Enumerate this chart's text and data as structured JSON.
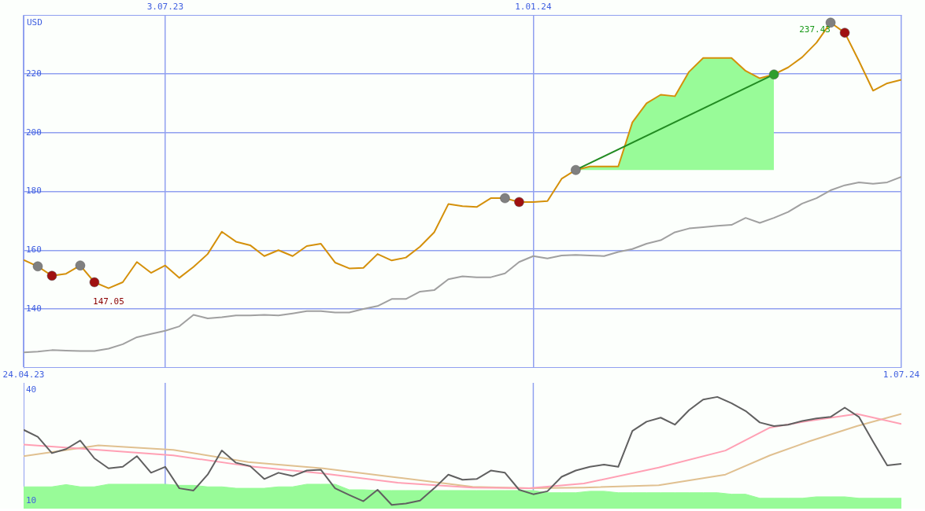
{
  "chart_data": [
    {
      "type": "line",
      "ylabel": "USD",
      "x": [
        "2023-04-24",
        "2023-05-01",
        "2023-05-08",
        "2023-05-15",
        "2023-05-22",
        "2023-05-29",
        "2023-06-05",
        "2023-06-12",
        "2023-06-19",
        "2023-06-26",
        "2023-07-03",
        "2023-07-10",
        "2023-07-17",
        "2023-07-24",
        "2023-07-31",
        "2023-08-07",
        "2023-08-14",
        "2023-08-21",
        "2023-08-28",
        "2023-09-04",
        "2023-09-11",
        "2023-09-18",
        "2023-09-25",
        "2023-10-02",
        "2023-10-09",
        "2023-10-16",
        "2023-10-23",
        "2023-10-30",
        "2023-11-06",
        "2023-11-13",
        "2023-11-20",
        "2023-11-27",
        "2023-12-04",
        "2023-12-11",
        "2023-12-18",
        "2023-12-25",
        "2024-01-01",
        "2024-01-08",
        "2024-01-15",
        "2024-01-22",
        "2024-01-29",
        "2024-02-05",
        "2024-02-12",
        "2024-02-19",
        "2024-02-26",
        "2024-03-04",
        "2024-03-11",
        "2024-03-18",
        "2024-03-25",
        "2024-04-01",
        "2024-04-08",
        "2024-04-15",
        "2024-04-22",
        "2024-04-29",
        "2024-05-06",
        "2024-05-13",
        "2024-05-20",
        "2024-05-27",
        "2024-06-03",
        "2024-06-10",
        "2024-06-17",
        "2024-06-24",
        "2024-07-01"
      ],
      "xlim": [
        "2023-04-24",
        "2024-07-01"
      ],
      "xticks": [
        {
          "value": "2023-04-24",
          "label": "24.04.23"
        },
        {
          "value": "2024-07-01",
          "label": "1.07.24"
        }
      ],
      "x2lim": [
        "2023-04-24",
        "2024-07-01"
      ],
      "x2ticks": [
        {
          "value": "2023-07-03",
          "label": "3.07.23"
        },
        {
          "value": "2024-01-01",
          "label": "1.01.24"
        }
      ],
      "ylim": [
        120,
        240
      ],
      "yticks": [
        140,
        160,
        180,
        200,
        220
      ],
      "grid": true,
      "legend": false,
      "annotations": [
        {
          "text": "237.43",
          "x": "2024-05-27",
          "y": 237.43
        },
        {
          "text": "147.05",
          "x": "2023-06-05",
          "y": 147.05
        }
      ],
      "series": [
        {
          "color": "#a0a0a0",
          "values": [
            125.2,
            125.5,
            126,
            125.8,
            125.7,
            125.7,
            126.5,
            128,
            130.4,
            131.5,
            132.6,
            134.1,
            138,
            136.8,
            137.2,
            137.8,
            137.8,
            138,
            137.8,
            138.5,
            139.3,
            139.3,
            138.8,
            138.8,
            140,
            141,
            143.4,
            143.4,
            145.9,
            146.4,
            150.1,
            151.1,
            150.8,
            150.8,
            152.1,
            156,
            158,
            157.2,
            158.2,
            158.4,
            158.2,
            158,
            159.4,
            160.4,
            162.2,
            163.4,
            166.1,
            167.4,
            167.8,
            168.3,
            168.6,
            171,
            169.3,
            171,
            173,
            175.9,
            177.7,
            180.4,
            182.1,
            183.1,
            182.6,
            183.1,
            185
          ]
        },
        {
          "color": "#d4900a",
          "values": [
            156.7,
            154.5,
            151.3,
            152,
            154.8,
            149.1,
            147.05,
            149.1,
            156,
            152.3,
            154.8,
            150.6,
            154.3,
            158.7,
            166.3,
            162.9,
            161.7,
            158,
            160,
            158,
            161.4,
            162.2,
            155.8,
            153.8,
            154,
            158.7,
            156.5,
            157.5,
            161.2,
            166.1,
            175.7,
            175,
            174.7,
            177.7,
            177.7,
            176.4,
            176.4,
            176.7,
            184.3,
            187.3,
            188.5,
            188.5,
            188.5,
            203.5,
            210,
            212.9,
            212.4,
            220.7,
            225.4,
            225.4,
            225.4,
            221,
            218.5,
            219.8,
            222.2,
            225.7,
            230.6,
            237.43,
            234,
            224.4,
            214.3,
            216.8,
            218
          ],
          "lower": [
            null,
            null,
            null,
            null,
            null,
            null,
            null,
            null,
            null,
            null,
            null,
            null,
            null,
            null,
            null,
            null,
            null,
            null,
            null,
            null,
            null,
            null,
            null,
            null,
            null,
            null,
            null,
            null,
            null,
            null,
            null,
            null,
            null,
            null,
            null,
            null,
            null,
            null,
            null,
            187.3,
            187.3,
            187.3,
            187.3,
            187.3,
            187.3,
            187.3,
            187.3,
            187.3,
            187.3,
            187.3,
            187.3,
            187.3,
            187.3,
            187.3,
            null,
            null,
            null,
            null,
            null,
            null,
            null,
            null,
            null
          ],
          "upper": [
            null,
            null,
            null,
            null,
            null,
            null,
            null,
            null,
            null,
            null,
            null,
            null,
            null,
            null,
            null,
            null,
            null,
            null,
            null,
            null,
            null,
            null,
            null,
            null,
            null,
            null,
            null,
            null,
            null,
            null,
            null,
            null,
            null,
            null,
            null,
            null,
            null,
            null,
            null,
            187.3,
            188.5,
            188.5,
            188.5,
            203.5,
            210,
            212.9,
            212.4,
            220.7,
            225.4,
            225.4,
            225.4,
            221,
            218.5,
            219.8,
            null,
            null,
            null,
            null,
            null,
            null,
            null,
            null,
            null
          ]
        },
        {
          "color": "#228b22",
          "x": [
            "2024-01-22",
            "2024-04-29"
          ],
          "values": [
            187.3,
            219.8
          ]
        },
        {
          "type": "scatter",
          "color": "#808080",
          "marker": "circle",
          "x": [
            "2023-05-01",
            "2023-05-22",
            "2023-12-18",
            "2024-01-22",
            "2024-05-27"
          ],
          "values": [
            154.5,
            154.8,
            177.7,
            187.3,
            237.43
          ]
        },
        {
          "type": "scatter",
          "color": "#a01010",
          "marker": "circle",
          "x": [
            "2023-05-08",
            "2023-05-29",
            "2023-12-25",
            "2024-06-03"
          ],
          "values": [
            151.3,
            149.1,
            176.4,
            234
          ]
        },
        {
          "type": "scatter",
          "color": "#2e9e2e",
          "marker": "circle",
          "x": [
            "2024-04-29"
          ],
          "values": [
            219.8
          ]
        }
      ]
    },
    {
      "type": "line",
      "x": [
        "2023-04-24",
        "2023-05-01",
        "2023-05-08",
        "2023-05-15",
        "2023-05-22",
        "2023-05-29",
        "2023-06-05",
        "2023-06-12",
        "2023-06-19",
        "2023-06-26",
        "2023-07-03",
        "2023-07-10",
        "2023-07-17",
        "2023-07-24",
        "2023-07-31",
        "2023-08-07",
        "2023-08-14",
        "2023-08-21",
        "2023-08-28",
        "2023-09-04",
        "2023-09-11",
        "2023-09-18",
        "2023-09-25",
        "2023-10-02",
        "2023-10-09",
        "2023-10-16",
        "2023-10-23",
        "2023-10-30",
        "2023-11-06",
        "2023-11-13",
        "2023-11-20",
        "2023-11-27",
        "2023-12-04",
        "2023-12-11",
        "2023-12-18",
        "2023-12-25",
        "2024-01-01",
        "2024-01-08",
        "2024-01-15",
        "2024-01-22",
        "2024-01-29",
        "2024-02-05",
        "2024-02-12",
        "2024-02-19",
        "2024-02-26",
        "2024-03-04",
        "2024-03-11",
        "2024-03-18",
        "2024-03-25",
        "2024-04-01",
        "2024-04-08",
        "2024-04-15",
        "2024-04-22",
        "2024-04-29",
        "2024-05-06",
        "2024-05-13",
        "2024-05-20",
        "2024-05-27",
        "2024-06-03",
        "2024-06-10",
        "2024-06-17",
        "2024-06-24",
        "2024-07-01"
      ],
      "xlim": [
        "2023-04-24",
        "2024-07-01"
      ],
      "ref_lines": [
        {
          "axis": "x",
          "value": "2023-07-03"
        },
        {
          "axis": "x",
          "value": "2024-01-01"
        }
      ],
      "ylim": [
        8,
        42
      ],
      "yticks": [
        10,
        40
      ],
      "tick_labels": "y",
      "legend": false,
      "series": [
        {
          "type": "area",
          "color": "#98fb98",
          "values": [
            13.9,
            13.9,
            13.9,
            14.5,
            13.9,
            13.9,
            14.6,
            14.6,
            14.6,
            14.6,
            14.6,
            14.3,
            14.3,
            13.9,
            13.9,
            13.5,
            13.5,
            13.5,
            13.9,
            13.9,
            14.6,
            14.6,
            14.6,
            13.1,
            13.1,
            12.9,
            12.9,
            12.9,
            12.9,
            12.9,
            12.9,
            12.9,
            12.9,
            12.9,
            12.9,
            12.9,
            12.9,
            12.3,
            12.3,
            12.3,
            12.7,
            12.7,
            12.3,
            12.3,
            12.3,
            12.3,
            12.3,
            12.3,
            12.3,
            12.3,
            11.9,
            11.9,
            10.8,
            10.8,
            10.8,
            10.8,
            11.2,
            11.2,
            11.2,
            10.8,
            10.8,
            10.8,
            10.8
          ]
        },
        {
          "color": "#e0c090",
          "x": [
            "2023-04-24",
            "2023-05-31",
            "2023-07-07",
            "2023-08-13",
            "2023-09-19",
            "2023-10-26",
            "2023-12-02",
            "2023-12-30",
            "2024-01-26",
            "2024-03-03",
            "2024-04-05",
            "2024-04-27",
            "2024-05-16",
            "2024-06-09",
            "2024-07-01"
          ],
          "values": [
            22.2,
            25.1,
            23.9,
            20.6,
            18.9,
            16.4,
            13.9,
            13.5,
            13.7,
            14.3,
            17.2,
            22.4,
            26.1,
            30.3,
            33.6
          ]
        },
        {
          "color": "#ffa0b4",
          "x": [
            "2023-04-24",
            "2023-05-31",
            "2023-07-07",
            "2023-08-13",
            "2023-09-19",
            "2023-10-26",
            "2023-12-02",
            "2023-12-30",
            "2024-01-26",
            "2024-03-03",
            "2024-04-05",
            "2024-04-27",
            "2024-05-16",
            "2024-06-09",
            "2024-07-01"
          ],
          "values": [
            25.3,
            23.9,
            22.4,
            19.5,
            17.5,
            15,
            13.7,
            13.5,
            14.8,
            19.1,
            23.7,
            29.9,
            31.7,
            33.6,
            30.9
          ]
        },
        {
          "color": "#606060",
          "values": [
            29.3,
            27.4,
            23,
            24.1,
            26.4,
            21.6,
            18.9,
            19.3,
            22.2,
            17.7,
            19.3,
            13.5,
            12.9,
            17.2,
            23.7,
            20.4,
            19.5,
            16,
            17.7,
            16.8,
            18.3,
            18.5,
            13.5,
            11.7,
            10,
            13.1,
            9,
            9.4,
            10.2,
            13.5,
            17.2,
            15.8,
            16,
            18.3,
            17.7,
            13.1,
            11.9,
            12.7,
            16.6,
            18.3,
            19.3,
            19.9,
            19.3,
            29,
            31.5,
            32.6,
            30.7,
            34.6,
            37.5,
            38.2,
            36.5,
            34.4,
            31.3,
            30.3,
            30.7,
            31.7,
            32.4,
            32.8,
            35.3,
            32.8,
            26.1,
            19.7,
            20.1
          ]
        }
      ]
    }
  ]
}
